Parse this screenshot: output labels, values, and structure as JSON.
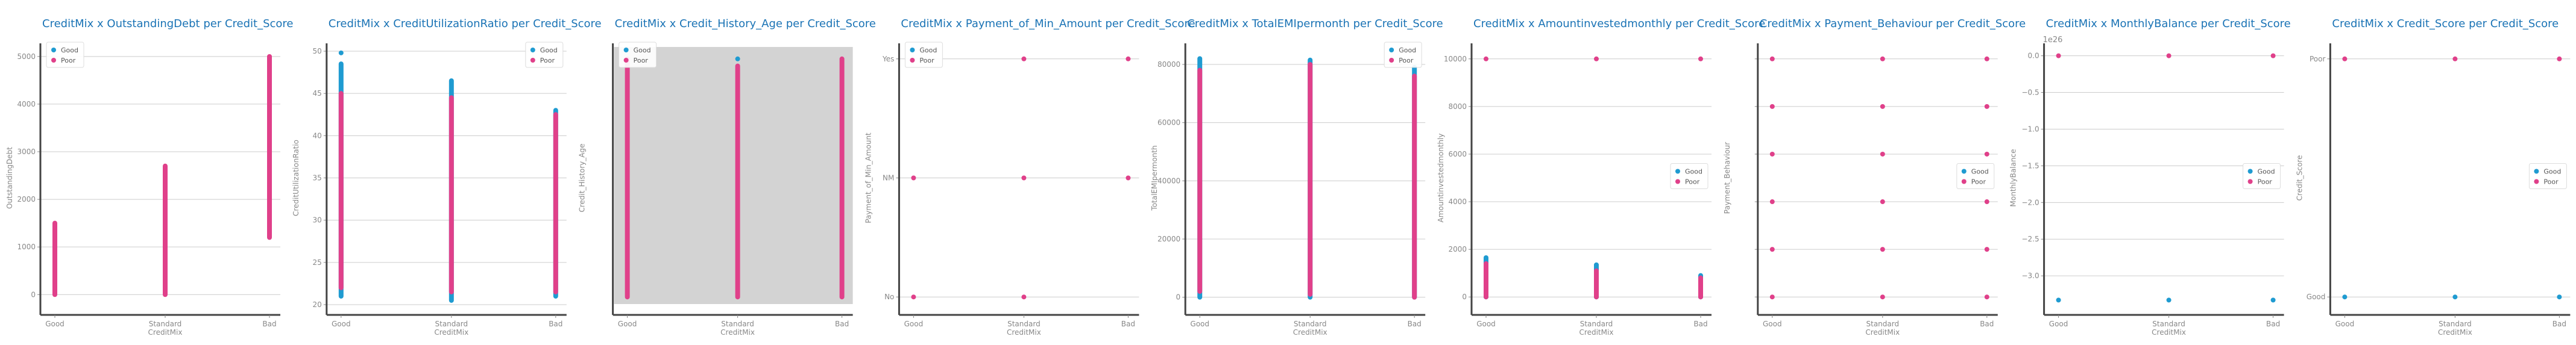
{
  "colors": {
    "good": "#1f9bd1",
    "poor": "#e0408a",
    "title": "#1a73b5",
    "grid": "#cccccc",
    "tick": "#888888",
    "shade": "#d3d3d3"
  },
  "chart_data": [
    {
      "type": "scatter",
      "title": "CreditMix x OutstandingDebt per Credit_Score",
      "xlabel": "CreditMix",
      "ylabel": "OutstandingDebt",
      "categories": [
        "Good",
        "Standard",
        "Bad"
      ],
      "ylim": [
        -300,
        5200
      ],
      "yticks": [
        {
          "v": 0,
          "label": "0"
        },
        {
          "v": 1000,
          "label": "1000"
        },
        {
          "v": 2000,
          "label": "2000"
        },
        {
          "v": 3000,
          "label": "3000"
        },
        {
          "v": 4000,
          "label": "4000"
        },
        {
          "v": 5000,
          "label": "5000"
        }
      ],
      "legend": [
        {
          "name": "Good",
          "color": "#1f9bd1"
        },
        {
          "name": "Poor",
          "color": "#e0408a"
        }
      ],
      "legend_position": "top-left",
      "series": [
        {
          "name": "Poor",
          "ranges": [
            [
              0,
              1500
            ],
            [
              0,
              2700
            ],
            [
              1200,
              5000
            ]
          ],
          "points": []
        },
        {
          "name": "Good",
          "ranges": [],
          "points": []
        }
      ]
    },
    {
      "type": "scatter",
      "title": "CreditMix x CreditUtilizationRatio per Credit_Score",
      "xlabel": "CreditMix",
      "ylabel": "CreditUtilizationRatio",
      "categories": [
        "Good",
        "Standard",
        "Bad"
      ],
      "ylim": [
        19.5,
        50.5
      ],
      "yticks": [
        {
          "v": 20,
          "label": "20"
        },
        {
          "v": 25,
          "label": "25"
        },
        {
          "v": 30,
          "label": "30"
        },
        {
          "v": 35,
          "label": "35"
        },
        {
          "v": 40,
          "label": "40"
        },
        {
          "v": 45,
          "label": "45"
        },
        {
          "v": 50,
          "label": "50"
        }
      ],
      "legend": [
        {
          "name": "Good",
          "color": "#1f9bd1"
        },
        {
          "name": "Poor",
          "color": "#e0408a"
        }
      ],
      "legend_position": "top-right",
      "series": [
        {
          "name": "Good",
          "ranges": [
            [
              21,
              48.5
            ],
            [
              20.5,
              46.5
            ],
            [
              21,
              43
            ]
          ],
          "points": [
            [
              0,
              49.8
            ]
          ]
        },
        {
          "name": "Poor",
          "ranges": [
            [
              22,
              45
            ],
            [
              21.5,
              44.5
            ],
            [
              21.5,
              42.5
            ]
          ],
          "points": []
        }
      ]
    },
    {
      "type": "scatter",
      "title": "CreditMix x Credit_History_Age per Credit_Score",
      "xlabel": "CreditMix",
      "ylabel": "Credit_History_Age",
      "categories": [
        "Good",
        "Standard",
        "Bad"
      ],
      "ylim": [
        -0.05,
        1.05
      ],
      "yticks": [],
      "shaded": true,
      "legend": [
        {
          "name": "Good",
          "color": "#1f9bd1"
        },
        {
          "name": "Poor",
          "color": "#e0408a"
        }
      ],
      "legend_position": "top-left",
      "series": [
        {
          "name": "Good",
          "ranges": [],
          "points": [
            [
              1,
              1.0
            ]
          ]
        },
        {
          "name": "Poor",
          "ranges": [
            [
              0,
              1
            ],
            [
              0,
              0.97
            ],
            [
              0,
              1
            ]
          ],
          "points": []
        }
      ]
    },
    {
      "type": "scatter",
      "title": "CreditMix x Payment_of_Min_Amount per Credit_Score",
      "xlabel": "CreditMix",
      "ylabel": "Payment_of_Min_Amount",
      "categories": [
        "Good",
        "Standard",
        "Bad"
      ],
      "ylim": [
        -0.1,
        2.1
      ],
      "yticks": [
        {
          "v": 0,
          "label": "No"
        },
        {
          "v": 1,
          "label": "NM"
        },
        {
          "v": 2,
          "label": "Yes"
        }
      ],
      "legend": [
        {
          "name": "Good",
          "color": "#1f9bd1"
        },
        {
          "name": "Poor",
          "color": "#e0408a"
        }
      ],
      "legend_position": "top-left",
      "series": [
        {
          "name": "Poor",
          "ranges": [],
          "points": [
            [
              0,
              0
            ],
            [
              0,
              1
            ],
            [
              1,
              0
            ],
            [
              1,
              1
            ],
            [
              1,
              2
            ],
            [
              2,
              1
            ],
            [
              2,
              2
            ]
          ]
        },
        {
          "name": "Good",
          "ranges": [],
          "points": []
        }
      ]
    },
    {
      "type": "scatter",
      "title": "CreditMix x TotalEMIpermonth per Credit_Score",
      "xlabel": "CreditMix",
      "ylabel": "TotalEMIpermonth",
      "categories": [
        "Good",
        "Standard",
        "Bad"
      ],
      "ylim": [
        -4000,
        86000
      ],
      "yticks": [
        {
          "v": 0,
          "label": "0"
        },
        {
          "v": 20000,
          "label": "20000"
        },
        {
          "v": 40000,
          "label": "40000"
        },
        {
          "v": 60000,
          "label": "60000"
        },
        {
          "v": 80000,
          "label": "80000"
        }
      ],
      "legend": [
        {
          "name": "Good",
          "color": "#1f9bd1"
        },
        {
          "name": "Poor",
          "color": "#e0408a"
        }
      ],
      "legend_position": "top-right",
      "series": [
        {
          "name": "Good",
          "ranges": [
            [
              0,
              82000
            ],
            [
              0,
              81500
            ],
            [
              0,
              79000
            ]
          ],
          "points": []
        },
        {
          "name": "Poor",
          "ranges": [
            [
              2000,
              78000
            ],
            [
              1000,
              80000
            ],
            [
              0,
              76000
            ]
          ],
          "points": []
        }
      ]
    },
    {
      "type": "scatter",
      "title": "CreditMix x Amountinvestedmonthly per Credit_Score",
      "xlabel": "CreditMix",
      "ylabel": "Amountinvestedmonthly",
      "categories": [
        "Good",
        "Standard",
        "Bad"
      ],
      "ylim": [
        -500,
        10500
      ],
      "yticks": [
        {
          "v": 0,
          "label": "0"
        },
        {
          "v": 2000,
          "label": "2000"
        },
        {
          "v": 4000,
          "label": "4000"
        },
        {
          "v": 6000,
          "label": "6000"
        },
        {
          "v": 8000,
          "label": "8000"
        },
        {
          "v": 10000,
          "label": "10000"
        }
      ],
      "legend": [
        {
          "name": "Good",
          "color": "#1f9bd1"
        },
        {
          "name": "Poor",
          "color": "#e0408a"
        }
      ],
      "legend_position": "center-right",
      "series": [
        {
          "name": "Good",
          "ranges": [
            [
              0,
              1650
            ],
            [
              0,
              1350
            ],
            [
              0,
              900
            ]
          ],
          "points": []
        },
        {
          "name": "Poor",
          "ranges": [
            [
              0,
              1400
            ],
            [
              0,
              1100
            ],
            [
              0,
              800
            ]
          ],
          "points": [
            [
              0,
              10000
            ],
            [
              1,
              10000
            ],
            [
              2,
              10000
            ]
          ]
        }
      ]
    },
    {
      "type": "scatter",
      "title": "CreditMix x Payment_Behaviour per Credit_Score",
      "xlabel": "CreditMix",
      "ylabel": "Payment_Behaviour",
      "categories": [
        "Good",
        "Standard",
        "Bad"
      ],
      "ylim": [
        -0.25,
        5.25
      ],
      "yticks": [
        {
          "v": 0,
          "label": ""
        },
        {
          "v": 1,
          "label": ""
        },
        {
          "v": 2,
          "label": ""
        },
        {
          "v": 3,
          "label": ""
        },
        {
          "v": 4,
          "label": ""
        },
        {
          "v": 5,
          "label": ""
        }
      ],
      "legend": [
        {
          "name": "Good",
          "color": "#1f9bd1"
        },
        {
          "name": "Poor",
          "color": "#e0408a"
        }
      ],
      "legend_position": "center-right",
      "series": [
        {
          "name": "Poor",
          "ranges": [],
          "points": [
            [
              0,
              0
            ],
            [
              0,
              1
            ],
            [
              0,
              2
            ],
            [
              0,
              3
            ],
            [
              0,
              4
            ],
            [
              0,
              5
            ],
            [
              1,
              0
            ],
            [
              1,
              1
            ],
            [
              1,
              2
            ],
            [
              1,
              3
            ],
            [
              1,
              4
            ],
            [
              1,
              5
            ],
            [
              2,
              0
            ],
            [
              2,
              1
            ],
            [
              2,
              2
            ],
            [
              2,
              3
            ],
            [
              2,
              4
            ],
            [
              2,
              5
            ]
          ]
        },
        {
          "name": "Good",
          "ranges": [],
          "points": []
        }
      ]
    },
    {
      "type": "scatter",
      "title": "CreditMix x MonthlyBalance per Credit_Score",
      "xlabel": "CreditMix",
      "ylabel": "MonthlyBalance",
      "categories": [
        "Good",
        "Standard",
        "Bad"
      ],
      "scale_note": "1e26",
      "ylim": [
        -3.45,
        0.12
      ],
      "yticks": [
        {
          "v": 0,
          "label": "0.0"
        },
        {
          "v": -0.5,
          "label": "−0.5"
        },
        {
          "v": -1,
          "label": "−1.0"
        },
        {
          "v": -1.5,
          "label": "−1.5"
        },
        {
          "v": -2,
          "label": "−2.0"
        },
        {
          "v": -2.5,
          "label": "−2.5"
        },
        {
          "v": -3,
          "label": "−3.0"
        }
      ],
      "legend": [
        {
          "name": "Good",
          "color": "#1f9bd1"
        },
        {
          "name": "Poor",
          "color": "#e0408a"
        }
      ],
      "legend_position": "center-right",
      "series": [
        {
          "name": "Poor",
          "ranges": [],
          "points": [
            [
              0,
              0
            ],
            [
              1,
              0
            ],
            [
              2,
              0
            ]
          ]
        },
        {
          "name": "Good",
          "ranges": [],
          "points": [
            [
              0,
              -3.33
            ],
            [
              1,
              -3.33
            ],
            [
              2,
              -3.33
            ]
          ]
        }
      ]
    },
    {
      "type": "scatter",
      "title": "CreditMix x Credit_Score per Credit_Score",
      "xlabel": "CreditMix",
      "ylabel": "Credit_Score",
      "categories": [
        "Good",
        "Standard",
        "Bad"
      ],
      "ylim": [
        -0.05,
        1.05
      ],
      "yticks": [
        {
          "v": 0,
          "label": "Good"
        },
        {
          "v": 1,
          "label": "Poor"
        }
      ],
      "legend": [
        {
          "name": "Good",
          "color": "#1f9bd1"
        },
        {
          "name": "Poor",
          "color": "#e0408a"
        }
      ],
      "legend_position": "center-right",
      "series": [
        {
          "name": "Poor",
          "ranges": [],
          "points": [
            [
              0,
              1
            ],
            [
              1,
              1
            ],
            [
              2,
              1
            ]
          ]
        },
        {
          "name": "Good",
          "ranges": [],
          "points": [
            [
              0,
              0
            ],
            [
              1,
              0
            ],
            [
              2,
              0
            ]
          ]
        }
      ]
    }
  ]
}
